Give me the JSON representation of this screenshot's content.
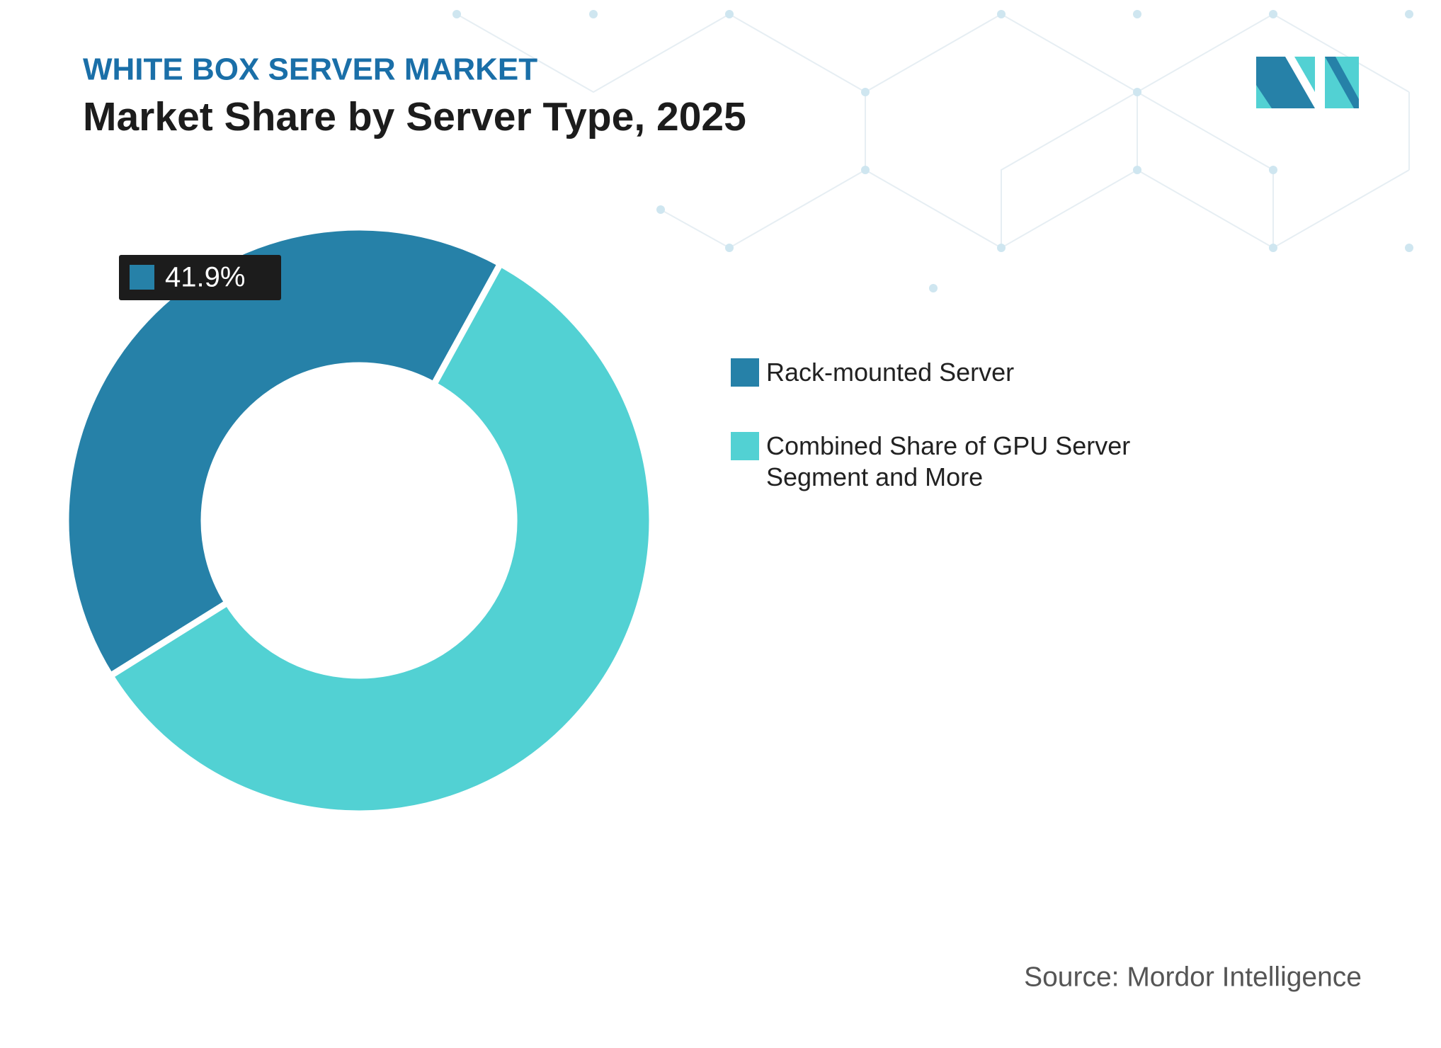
{
  "chart_data": {
    "type": "donut",
    "subtitle": "WHITE BOX SERVER MARKET",
    "title": "Market Share by Server Type, 2025",
    "categories": [
      "Rack-mounted Server",
      "Combined Share of GPU Server Segment and More"
    ],
    "values": [
      41.9,
      58.1
    ],
    "value_labels": [
      "41.9%",
      null
    ],
    "colors": [
      "#2681a8",
      "#52d1d3"
    ],
    "source": "Source: Mordor Intelligence"
  }
}
